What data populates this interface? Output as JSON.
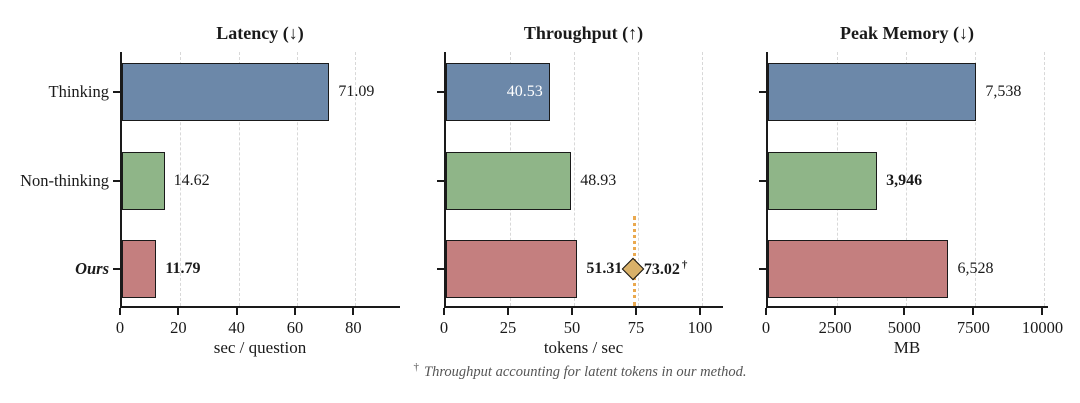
{
  "figure": {
    "series_colors": [
      "#6c88a9",
      "#8fb588",
      "#c47f7f"
    ],
    "category_styles": [
      "normal",
      "normal",
      "bold-italic"
    ],
    "colors": {
      "axis": "#1a1a1a",
      "grid": "#d8d8d8",
      "marker_fill": "#d9b169",
      "marker_dotted_line": "#eaa94f",
      "value_inside_bar_text": "#ffffff",
      "footnote_text": "#555555"
    },
    "footnote": {
      "dagger": "†",
      "text": "Throughput accounting for latent tokens in our method."
    }
  },
  "chart_data": [
    {
      "type": "bar",
      "orientation": "horizontal",
      "title": "Latency (↓)",
      "xlabel": "sec / question",
      "categories": [
        "Thinking",
        "Non-thinking",
        "Ours"
      ],
      "values": [
        71.09,
        14.62,
        11.79
      ],
      "value_labels": [
        {
          "text": "71.09",
          "bold": false,
          "inside": false
        },
        {
          "text": "14.62",
          "bold": false,
          "inside": false
        },
        {
          "text": "11.79",
          "bold": true,
          "inside": false
        }
      ],
      "xlim": [
        0,
        96
      ],
      "xticks": [
        0,
        20,
        40,
        60,
        80
      ],
      "grid": true,
      "show_category_labels": true
    },
    {
      "type": "bar",
      "orientation": "horizontal",
      "title": "Throughput (↑)",
      "xlabel": "tokens / sec",
      "categories": [
        "Thinking",
        "Non-thinking",
        "Ours"
      ],
      "values": [
        40.53,
        48.93,
        51.31
      ],
      "value_labels": [
        {
          "text": "40.53",
          "bold": false,
          "inside": true
        },
        {
          "text": "48.93",
          "bold": false,
          "inside": false
        },
        {
          "text": "51.31",
          "bold": true,
          "inside": false
        }
      ],
      "xlim": [
        0,
        109
      ],
      "xticks": [
        0,
        25,
        50,
        75,
        100
      ],
      "grid": true,
      "show_category_labels": false,
      "marker": {
        "shape": "diamond",
        "row": 2,
        "value": 73.02,
        "label": "73.02",
        "dagger": "†"
      }
    },
    {
      "type": "bar",
      "orientation": "horizontal",
      "title": "Peak Memory (↓)",
      "xlabel": "MB",
      "categories": [
        "Thinking",
        "Non-thinking",
        "Ours"
      ],
      "values": [
        7538,
        3946,
        6528
      ],
      "value_labels": [
        {
          "text": "7,538",
          "bold": false,
          "inside": false
        },
        {
          "text": "3,946",
          "bold": true,
          "inside": false
        },
        {
          "text": "6,528",
          "bold": false,
          "inside": false
        }
      ],
      "xlim": [
        0,
        10200
      ],
      "xticks": [
        0,
        2500,
        5000,
        7500,
        10000
      ],
      "grid": true,
      "show_category_labels": false
    }
  ]
}
